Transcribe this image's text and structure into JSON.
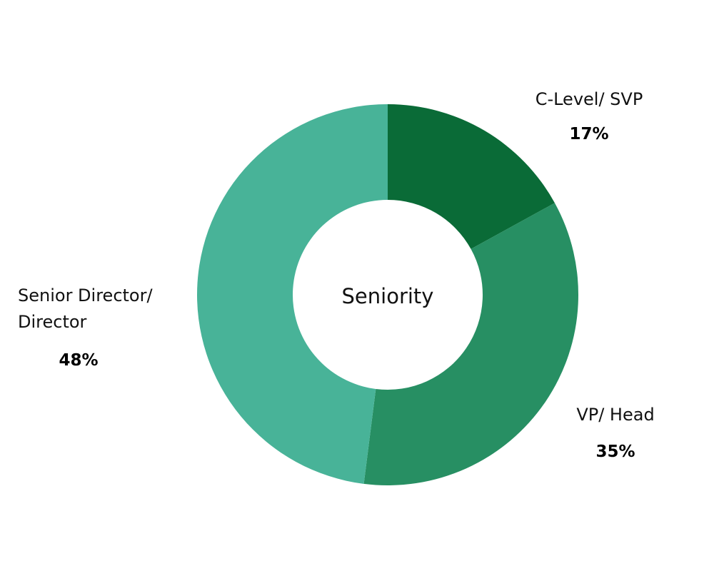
{
  "chart_data": {
    "type": "pie",
    "variant": "donut",
    "title": "Seniority",
    "slices": [
      {
        "label_lines": [
          "C-Level/ SVP"
        ],
        "value": 17,
        "display": "17%",
        "color": "#0a6b37"
      },
      {
        "label_lines": [
          "VP/ Head"
        ],
        "value": 35,
        "display": "35%",
        "color": "#278f63"
      },
      {
        "label_lines": [
          "Senior Director/",
          "Director"
        ],
        "value": 48,
        "display": "48%",
        "color": "#48b398"
      }
    ],
    "legend": "none",
    "labels_placement": "outside"
  }
}
